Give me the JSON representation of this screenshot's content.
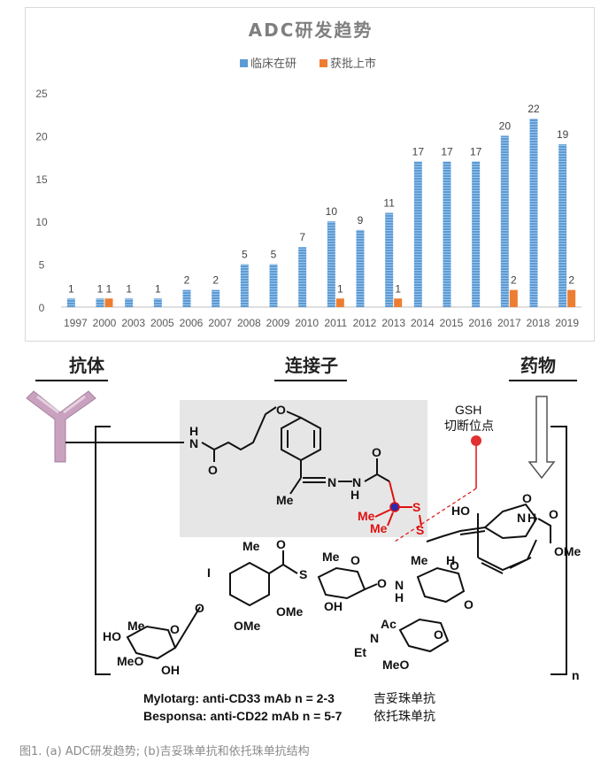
{
  "chart_data": {
    "type": "bar",
    "title": "ADC研发趋势",
    "categories": [
      "1997",
      "2000",
      "2003",
      "2005",
      "2006",
      "2007",
      "2008",
      "2009",
      "2010",
      "2011",
      "2012",
      "2013",
      "2014",
      "2015",
      "2016",
      "2017",
      "2018",
      "2019"
    ],
    "series": [
      {
        "name": "临床在研",
        "color": "#5b9bd5",
        "values": [
          1,
          1,
          1,
          1,
          2,
          2,
          5,
          5,
          7,
          10,
          9,
          11,
          17,
          17,
          17,
          20,
          22,
          19
        ]
      },
      {
        "name": "获批上市",
        "color": "#ed7d31",
        "values": [
          0,
          1,
          0,
          0,
          0,
          0,
          0,
          0,
          0,
          1,
          0,
          1,
          0,
          0,
          0,
          2,
          0,
          2
        ]
      }
    ],
    "ylim": [
      0,
      25
    ],
    "yticks": [
      0,
      5,
      10,
      15,
      20,
      25
    ],
    "legend": "top-center",
    "grid": false
  },
  "structure": {
    "headers": {
      "antibody": "抗体",
      "linker": "连接子",
      "drug": "药物"
    },
    "gsh_label_1": "GSH",
    "gsh_label_2": "切断位点",
    "atoms": {
      "N": "N",
      "H": "H",
      "O": "O",
      "S": "S",
      "Me": "Me",
      "OMe": "OMe",
      "HO": "HO",
      "OH": "OH",
      "MeO": "MeO",
      "I": "I",
      "Ac": "Ac",
      "Et": "Et",
      "n": "n"
    },
    "lines": [
      {
        "text": "Mylotarg: anti-CD33 mAb   n = 2-3",
        "cn": "吉妥珠单抗"
      },
      {
        "text": "Besponsa: anti-CD22 mAb   n = 5-7",
        "cn": "依托珠单抗"
      }
    ]
  },
  "caption": "图1. (a) ADC研发趋势; (b)吉妥珠单抗和依托珠单抗结构"
}
